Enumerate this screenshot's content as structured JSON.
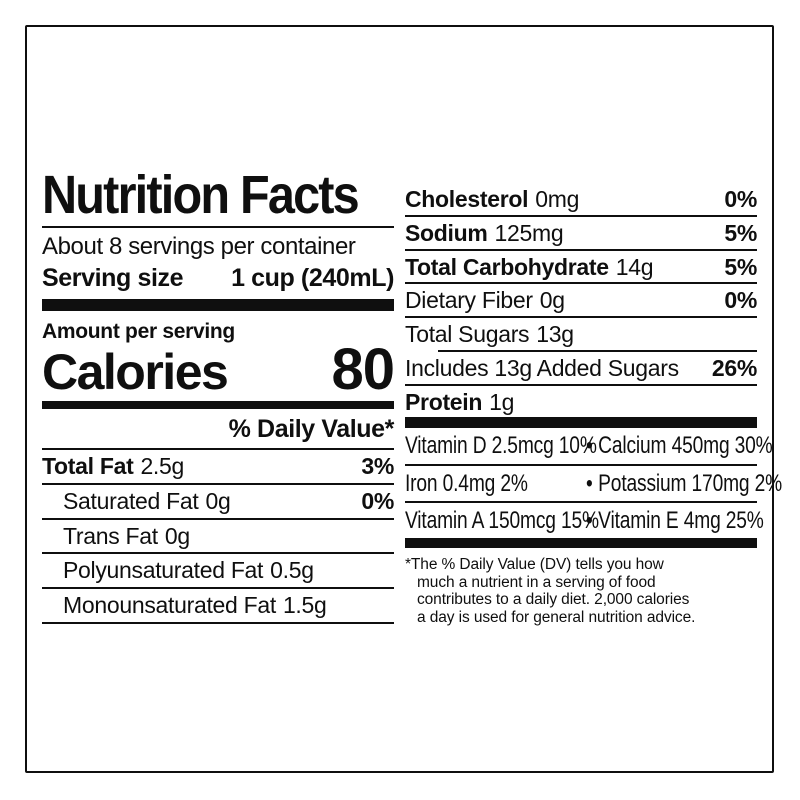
{
  "label": {
    "title": "Nutrition Facts",
    "servings_per_container": "About 8 servings per container",
    "serving_size": {
      "label": "Serving size",
      "value": "1 cup (240mL)"
    },
    "amount_per_serving": "Amount per serving",
    "calories": {
      "label": "Calories",
      "value": "80"
    },
    "daily_value_header": "% Daily Value*",
    "nutrients_left": [
      {
        "name": "Total Fat",
        "amount": "2.5g",
        "dv": "3%"
      },
      {
        "name": "Saturated Fat",
        "amount": "0g",
        "dv": "0%"
      },
      {
        "name": "Trans Fat",
        "amount": "0g",
        "dv": ""
      },
      {
        "name": "Polyunsaturated Fat",
        "amount": "0.5g",
        "dv": ""
      },
      {
        "name": "Monounsaturated Fat",
        "amount": "1.5g",
        "dv": ""
      }
    ],
    "nutrients_right": [
      {
        "name": "Cholesterol",
        "amount": "0mg",
        "dv": "0%"
      },
      {
        "name": "Sodium",
        "amount": "125mg",
        "dv": "5%"
      },
      {
        "name": "Total Carbohydrate",
        "amount": "14g",
        "dv": "5%"
      },
      {
        "name": "Dietary Fiber",
        "amount": "0g",
        "dv": "0%"
      },
      {
        "name": "Total Sugars",
        "amount": "13g",
        "dv": ""
      },
      {
        "name": "Includes 13g Added Sugars",
        "amount": "",
        "dv": "26%"
      },
      {
        "name": "Protein",
        "amount": "1g",
        "dv": ""
      }
    ],
    "micronutrients": {
      "bullet": "•",
      "rows": [
        {
          "left": "Vitamin D 2.5mcg 10%",
          "right": "Calcium 450mg 30%"
        },
        {
          "left": "Iron 0.4mg 2%",
          "right": "Potassium 170mg 2%"
        },
        {
          "left": "Vitamin A 150mcg 15%",
          "right": "Vitamin E 4mg 25%"
        }
      ]
    },
    "footnote_lines": [
      "*The % Daily Value (DV) tells you how",
      "much a nutrient in a serving of food",
      "contributes to a daily diet. 2,000 calories",
      "a day is used for general nutrition advice."
    ],
    "colors": {
      "ink": "#0f0f0f",
      "background": "#ffffff"
    }
  }
}
